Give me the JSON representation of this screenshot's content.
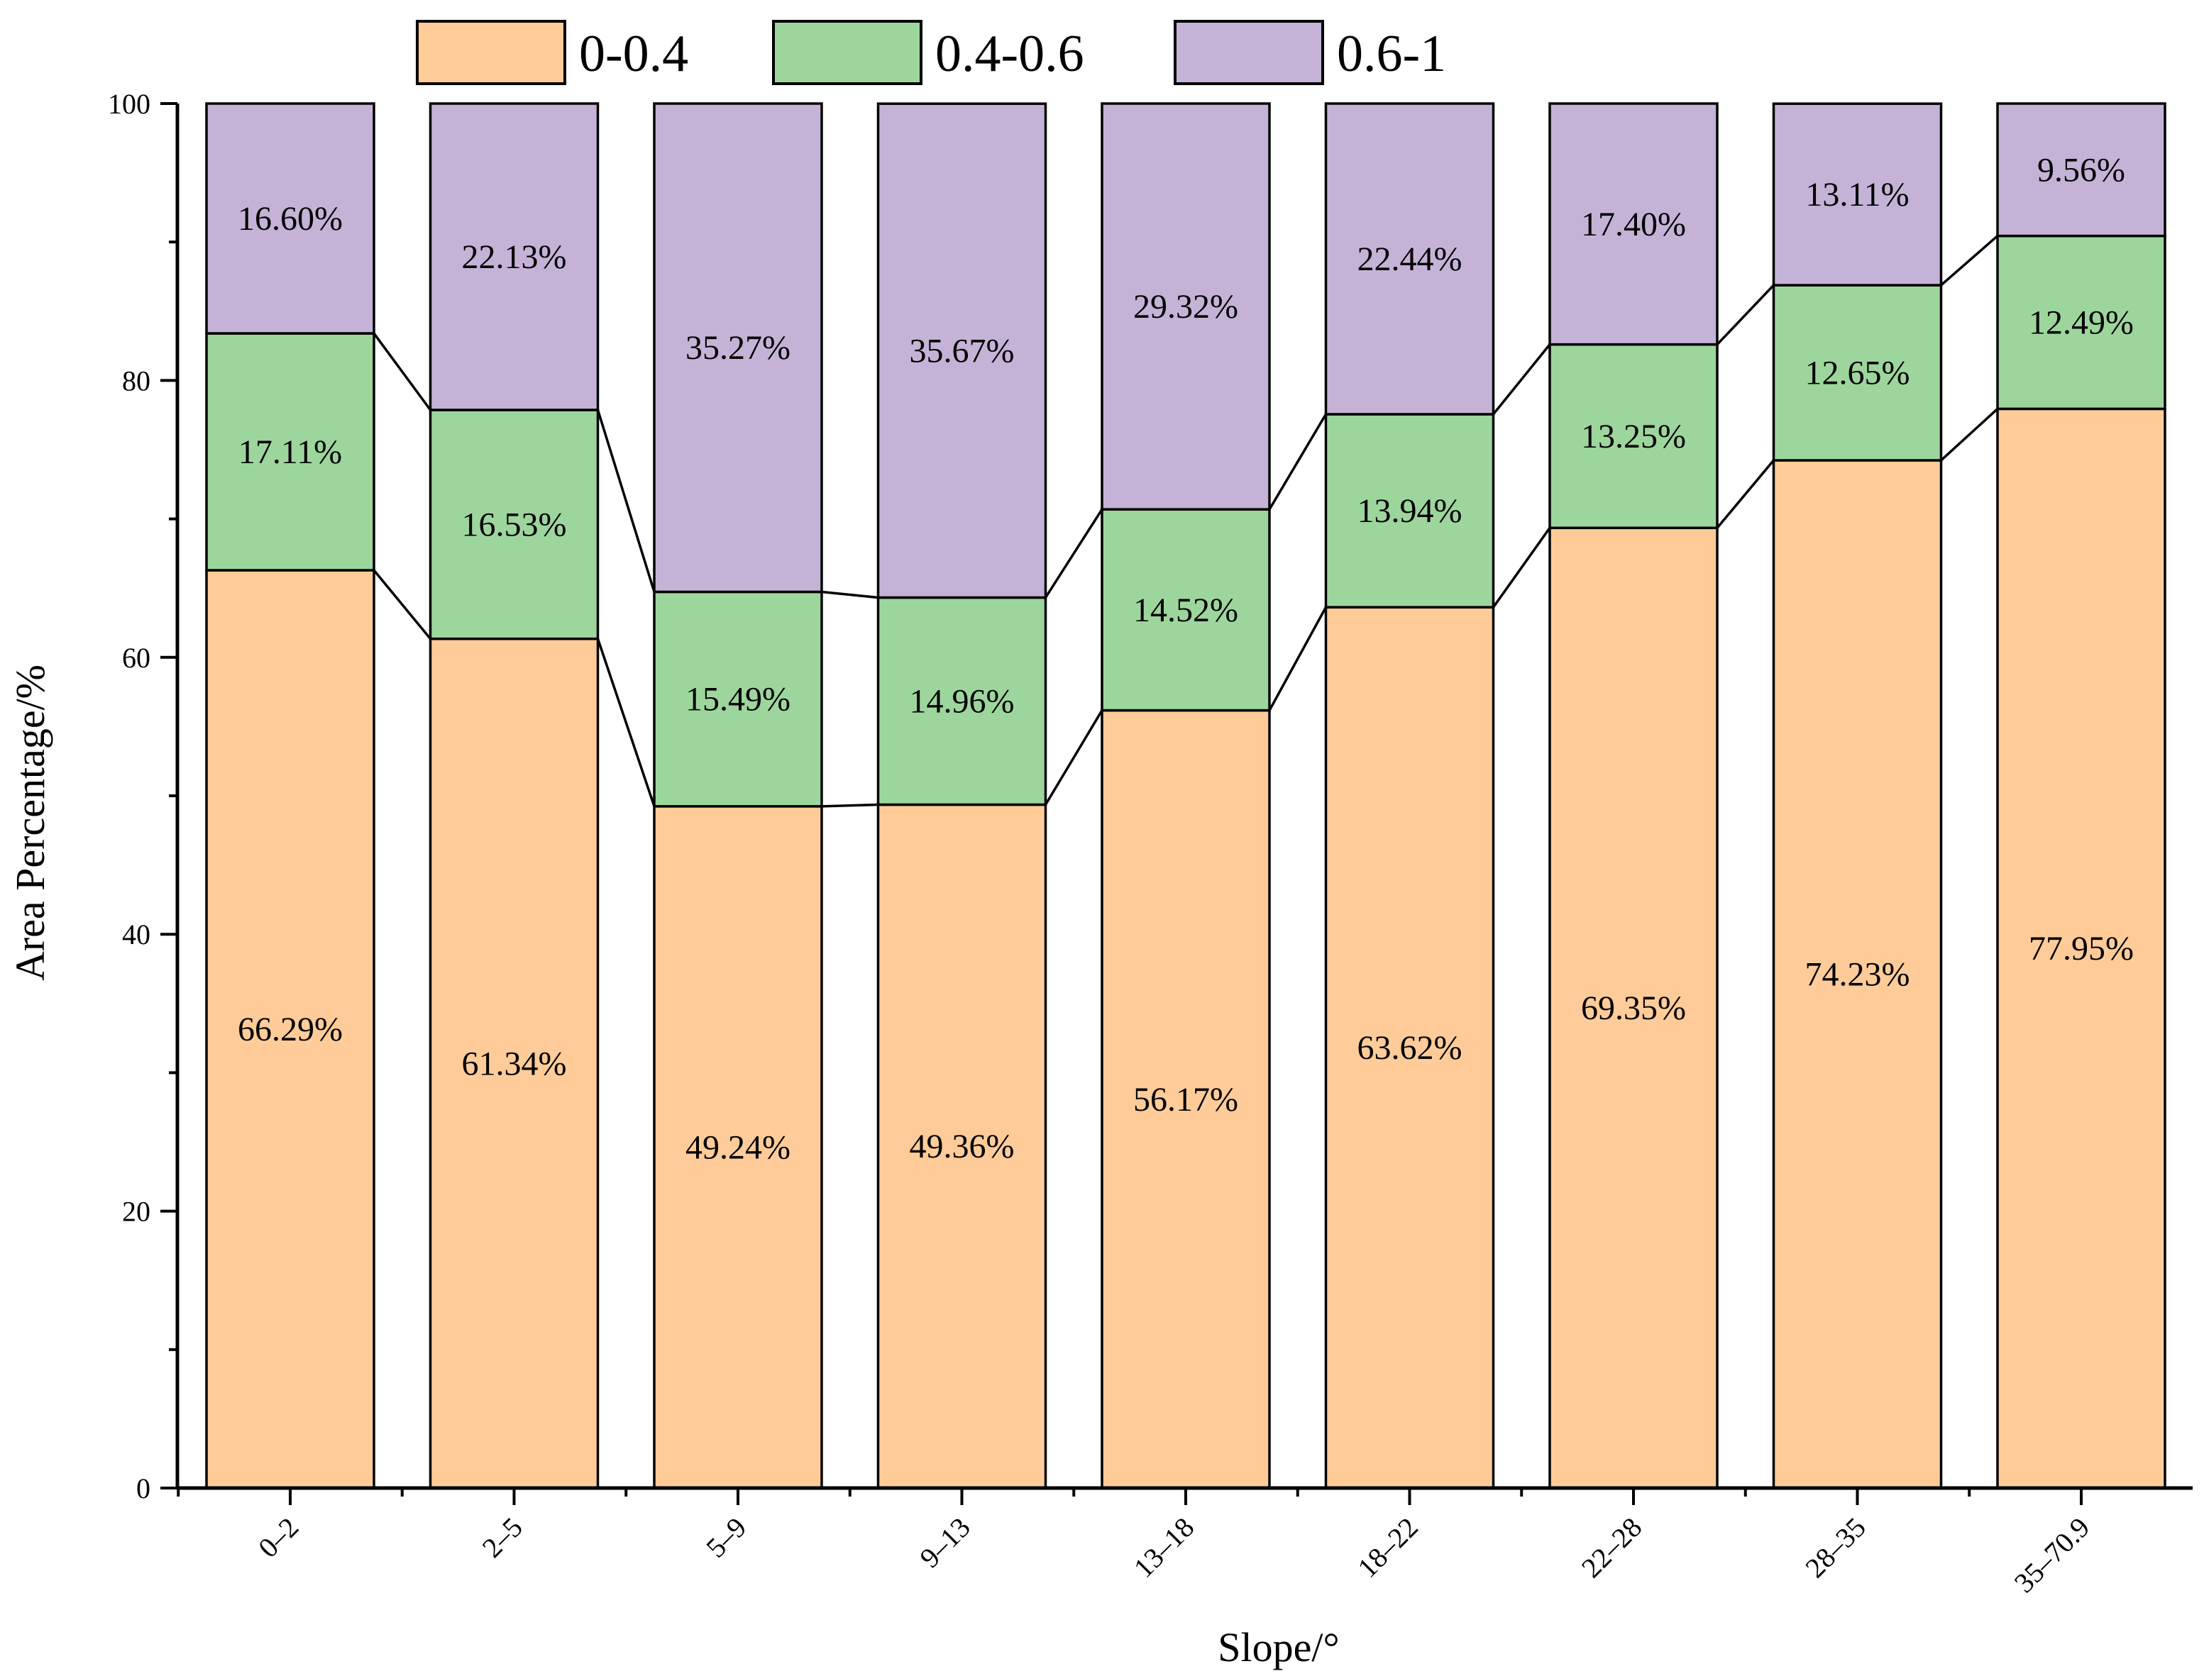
{
  "chart_data": {
    "type": "bar",
    "stacked": true,
    "title": "",
    "xlabel": "Slope/°",
    "ylabel": "Area Percentage/%",
    "ylim": [
      0,
      100
    ],
    "yticks": [
      "0",
      "20",
      "40",
      "60",
      "80",
      "100"
    ],
    "categories": [
      "0–2",
      "2–5",
      "5–9",
      "9–13",
      "13–18",
      "18–22",
      "22–28",
      "28–35",
      "35–70.9"
    ],
    "legend_position": "top",
    "series": [
      {
        "name": "0-0.4",
        "color": "#FFCC99",
        "values": [
          66.29,
          61.34,
          49.24,
          49.36,
          56.17,
          63.62,
          69.35,
          74.23,
          77.95
        ],
        "labels": [
          "66.29%",
          "61.34%",
          "49.24%",
          "49.36%",
          "56.17%",
          "63.62%",
          "69.35%",
          "74.23%",
          "77.95%"
        ]
      },
      {
        "name": "0.4-0.6",
        "color": "#9DD69D",
        "values": [
          17.11,
          16.53,
          15.49,
          14.96,
          14.52,
          13.94,
          13.25,
          12.65,
          12.49
        ],
        "labels": [
          "17.11%",
          "16.53%",
          "15.49%",
          "14.96%",
          "14.52%",
          "13.94%",
          "13.25%",
          "12.65%",
          "12.49%"
        ]
      },
      {
        "name": "0.6-1",
        "color": "#C5B3D7",
        "values": [
          16.6,
          22.13,
          35.27,
          35.67,
          29.32,
          22.44,
          17.4,
          13.11,
          9.56
        ],
        "labels": [
          "16.60%",
          "22.13%",
          "35.27%",
          "35.67%",
          "29.32%",
          "22.44%",
          "17.40%",
          "13.11%",
          "9.56%"
        ]
      }
    ]
  }
}
